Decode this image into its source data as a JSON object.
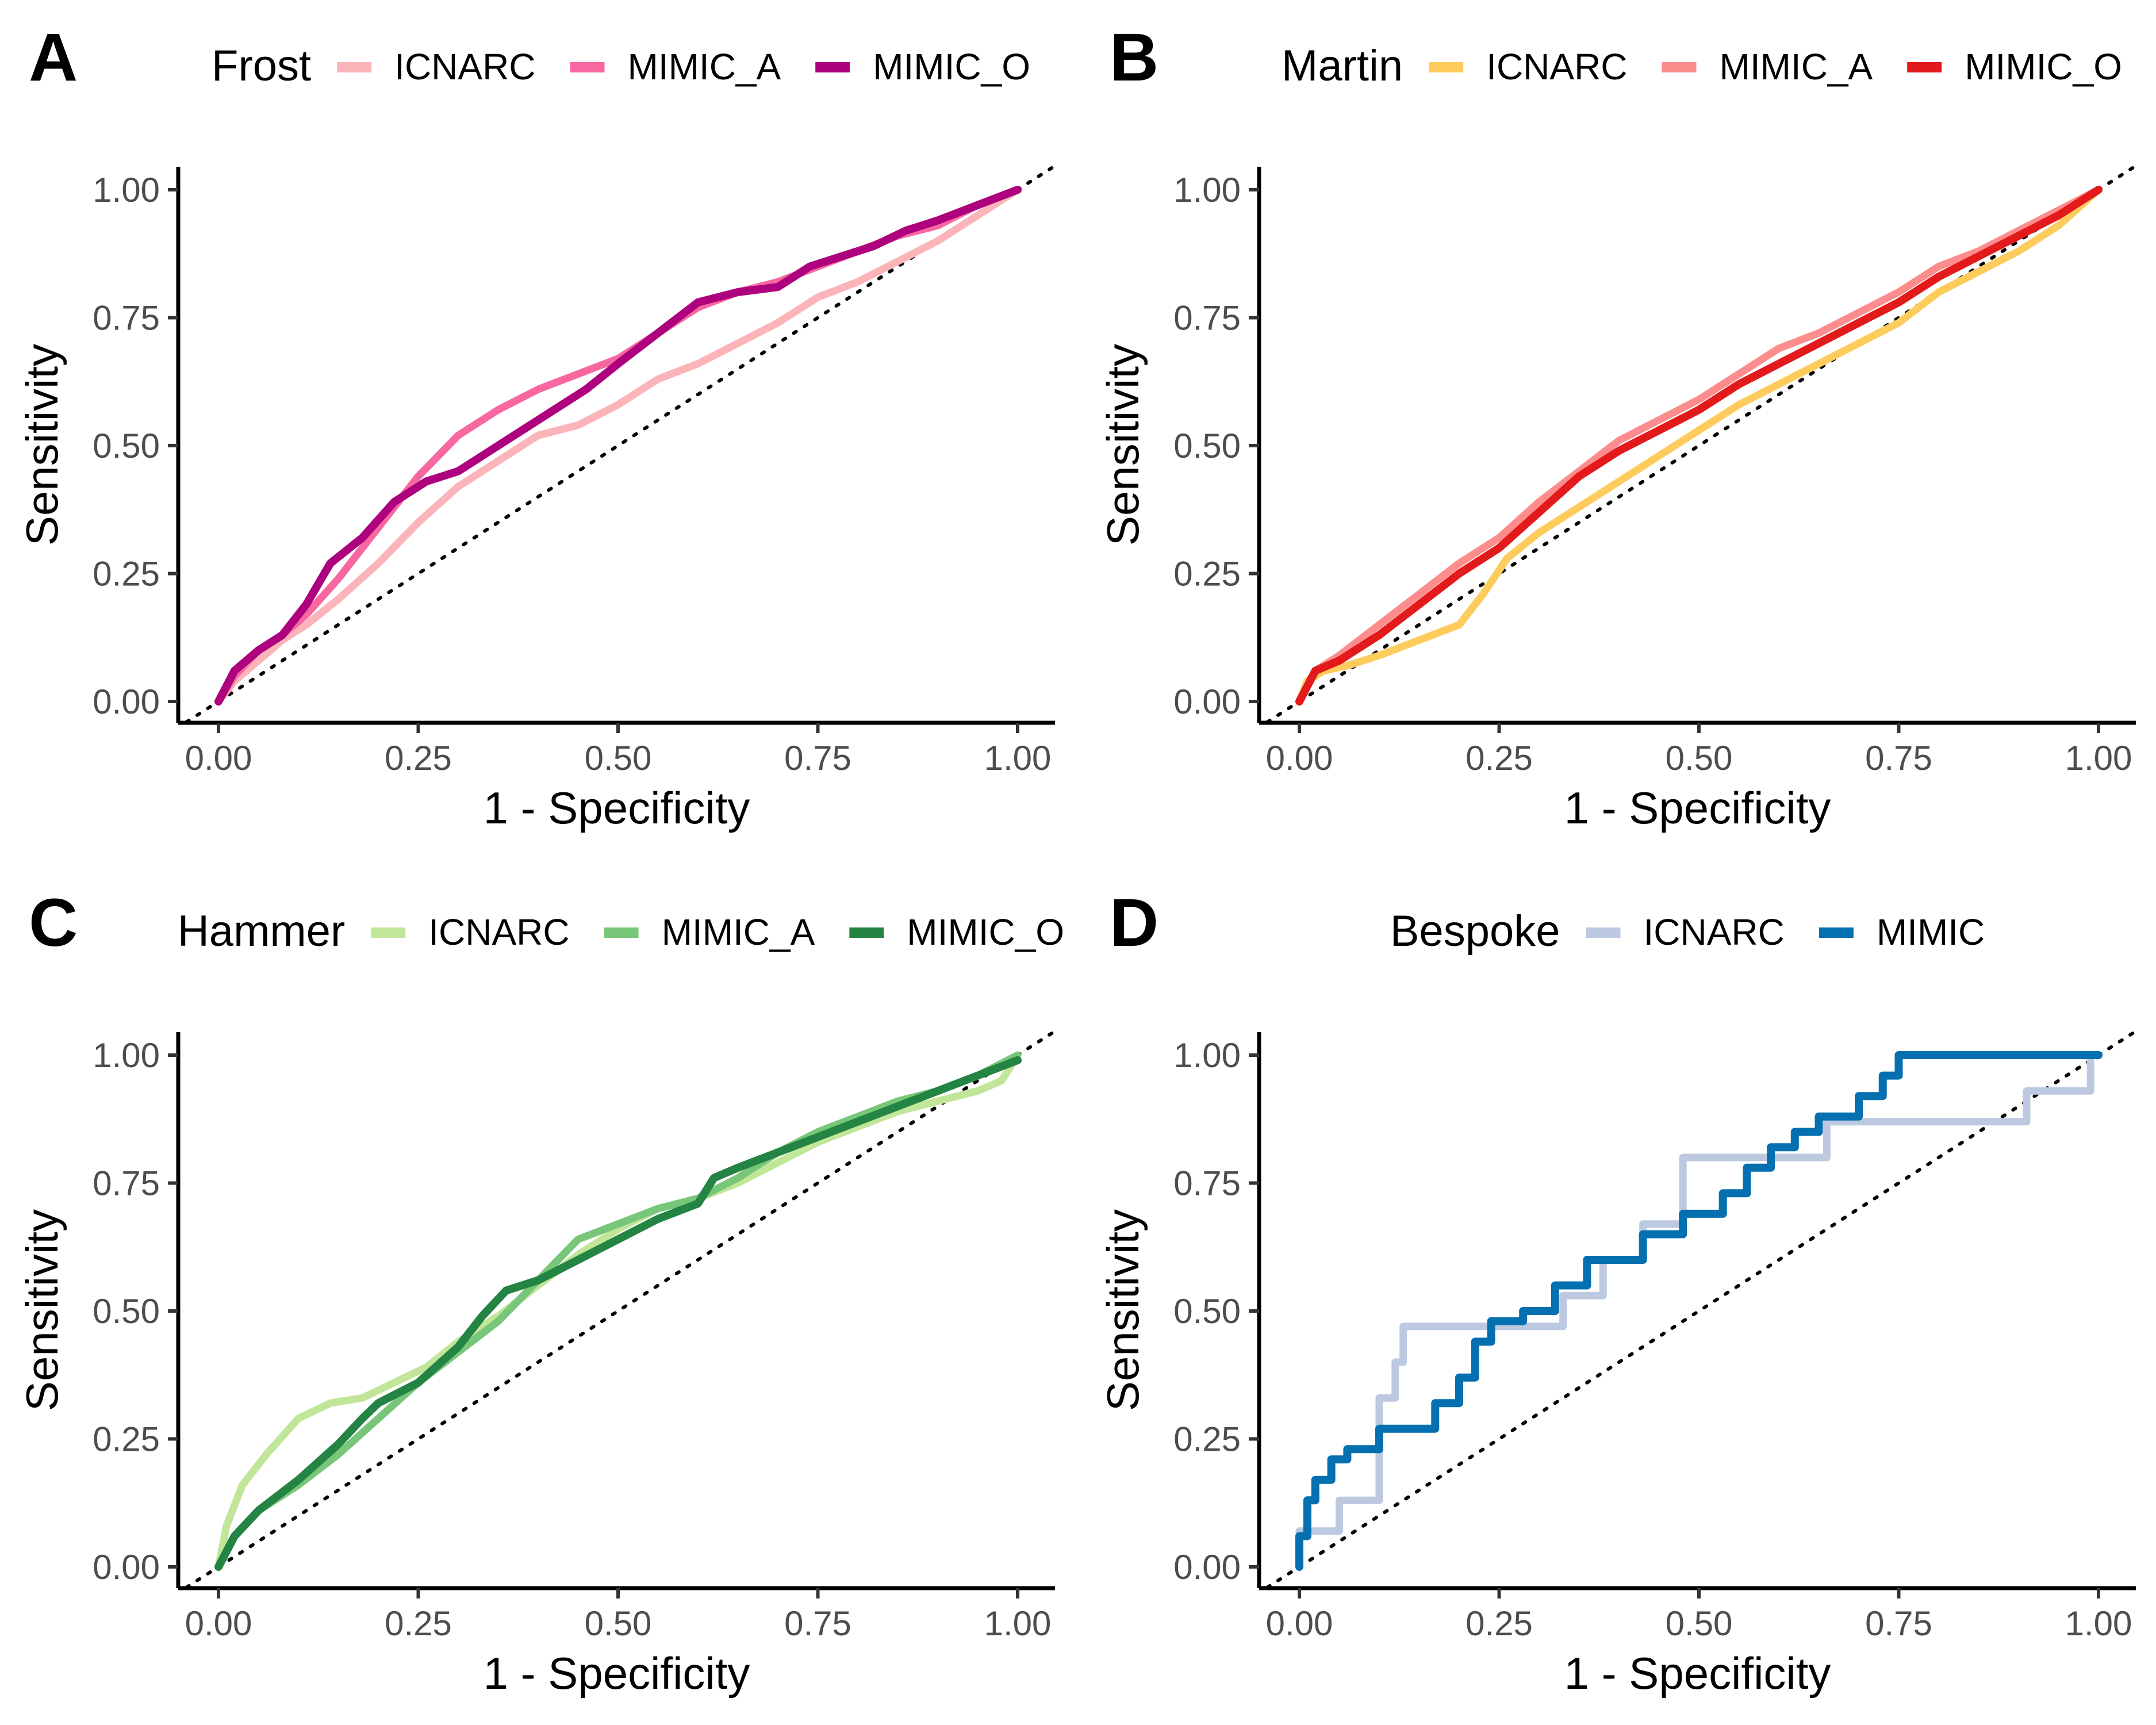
{
  "chart_data": [
    {
      "panel": "A",
      "type": "line",
      "legend_title": "Frost",
      "legend_position": "top",
      "xlabel": "1 - Specificity",
      "ylabel": "Sensitivity",
      "xlim": [
        0,
        1
      ],
      "ylim": [
        0,
        1
      ],
      "xticks": [
        "0.00",
        "0.25",
        "0.50",
        "0.75",
        "1.00"
      ],
      "yticks": [
        "0.00",
        "0.25",
        "0.50",
        "0.75",
        "1.00"
      ],
      "reference_line": "dotted diagonal",
      "series": [
        {
          "name": "ICNARC",
          "color": "#fbb4b9",
          "x": [
            0,
            0.02,
            0.05,
            0.08,
            0.11,
            0.15,
            0.2,
            0.25,
            0.3,
            0.35,
            0.4,
            0.45,
            0.5,
            0.55,
            0.6,
            0.65,
            0.7,
            0.75,
            0.8,
            0.85,
            0.9,
            0.95,
            1.0
          ],
          "y": [
            0,
            0.04,
            0.08,
            0.12,
            0.15,
            0.2,
            0.27,
            0.35,
            0.42,
            0.47,
            0.52,
            0.54,
            0.58,
            0.63,
            0.66,
            0.7,
            0.74,
            0.79,
            0.82,
            0.86,
            0.9,
            0.95,
            1.0
          ]
        },
        {
          "name": "MIMIC_A",
          "color": "#f768a1",
          "x": [
            0,
            0.02,
            0.05,
            0.08,
            0.11,
            0.15,
            0.2,
            0.25,
            0.3,
            0.35,
            0.4,
            0.45,
            0.5,
            0.55,
            0.6,
            0.65,
            0.7,
            0.75,
            0.8,
            0.85,
            0.9,
            0.95,
            1.0
          ],
          "y": [
            0,
            0.05,
            0.1,
            0.13,
            0.17,
            0.24,
            0.34,
            0.44,
            0.52,
            0.57,
            0.61,
            0.64,
            0.67,
            0.72,
            0.77,
            0.8,
            0.82,
            0.85,
            0.88,
            0.91,
            0.93,
            0.97,
            1.0
          ]
        },
        {
          "name": "MIMIC_O",
          "color": "#ae017e",
          "x": [
            0,
            0.02,
            0.05,
            0.08,
            0.11,
            0.14,
            0.18,
            0.22,
            0.26,
            0.3,
            0.34,
            0.38,
            0.42,
            0.46,
            0.5,
            0.55,
            0.6,
            0.65,
            0.7,
            0.74,
            0.78,
            0.82,
            0.86,
            0.9,
            0.95,
            1.0
          ],
          "y": [
            0,
            0.06,
            0.1,
            0.13,
            0.19,
            0.27,
            0.32,
            0.39,
            0.43,
            0.45,
            0.49,
            0.53,
            0.57,
            0.61,
            0.66,
            0.72,
            0.78,
            0.8,
            0.81,
            0.85,
            0.87,
            0.89,
            0.92,
            0.94,
            0.97,
            1.0
          ]
        }
      ]
    },
    {
      "panel": "B",
      "type": "line",
      "legend_title": "Martin",
      "legend_position": "top",
      "xlabel": "1 - Specificity",
      "ylabel": "Sensitivity",
      "xlim": [
        0,
        1
      ],
      "ylim": [
        0,
        1
      ],
      "xticks": [
        "0.00",
        "0.25",
        "0.50",
        "0.75",
        "1.00"
      ],
      "yticks": [
        "0.00",
        "0.25",
        "0.50",
        "0.75",
        "1.00"
      ],
      "reference_line": "dotted diagonal",
      "series": [
        {
          "name": "ICNARC",
          "color": "#fecc5c",
          "x": [
            0,
            0.01,
            0.03,
            0.06,
            0.1,
            0.15,
            0.2,
            0.23,
            0.26,
            0.3,
            0.35,
            0.4,
            0.45,
            0.5,
            0.55,
            0.6,
            0.65,
            0.7,
            0.75,
            0.8,
            0.85,
            0.9,
            0.95,
            1.0
          ],
          "y": [
            0,
            0.04,
            0.06,
            0.07,
            0.09,
            0.12,
            0.15,
            0.21,
            0.28,
            0.33,
            0.38,
            0.43,
            0.48,
            0.53,
            0.58,
            0.62,
            0.66,
            0.7,
            0.74,
            0.8,
            0.84,
            0.88,
            0.93,
            1.0
          ]
        },
        {
          "name": "MIMIC_A",
          "color": "#fd8d8d",
          "x": [
            0,
            0.02,
            0.05,
            0.1,
            0.15,
            0.2,
            0.25,
            0.3,
            0.35,
            0.4,
            0.45,
            0.5,
            0.55,
            0.6,
            0.65,
            0.7,
            0.75,
            0.8,
            0.85,
            0.9,
            0.95,
            1.0
          ],
          "y": [
            0,
            0.06,
            0.09,
            0.15,
            0.21,
            0.27,
            0.32,
            0.39,
            0.45,
            0.51,
            0.55,
            0.59,
            0.64,
            0.69,
            0.72,
            0.76,
            0.8,
            0.85,
            0.88,
            0.92,
            0.96,
            1.0
          ]
        },
        {
          "name": "MIMIC_O",
          "color": "#e31a1c",
          "x": [
            0,
            0.02,
            0.05,
            0.1,
            0.15,
            0.2,
            0.25,
            0.3,
            0.35,
            0.4,
            0.45,
            0.5,
            0.55,
            0.6,
            0.65,
            0.7,
            0.75,
            0.8,
            0.85,
            0.9,
            0.95,
            1.0
          ],
          "y": [
            0,
            0.06,
            0.08,
            0.13,
            0.19,
            0.25,
            0.3,
            0.37,
            0.44,
            0.49,
            0.53,
            0.57,
            0.62,
            0.66,
            0.7,
            0.74,
            0.78,
            0.83,
            0.87,
            0.91,
            0.95,
            1.0
          ]
        }
      ]
    },
    {
      "panel": "C",
      "type": "line",
      "legend_title": "Hammer",
      "legend_position": "top",
      "xlabel": "1 - Specificity",
      "ylabel": "Sensitivity",
      "xlim": [
        0,
        1
      ],
      "ylim": [
        0,
        1
      ],
      "xticks": [
        "0.00",
        "0.25",
        "0.50",
        "0.75",
        "1.00"
      ],
      "yticks": [
        "0.00",
        "0.25",
        "0.50",
        "0.75",
        "1.00"
      ],
      "reference_line": "dotted diagonal",
      "series": [
        {
          "name": "ICNARC",
          "color": "#c2e699",
          "x": [
            0,
            0.01,
            0.03,
            0.06,
            0.1,
            0.14,
            0.18,
            0.22,
            0.26,
            0.3,
            0.35,
            0.4,
            0.45,
            0.5,
            0.55,
            0.6,
            0.65,
            0.7,
            0.75,
            0.8,
            0.85,
            0.9,
            0.95,
            0.98,
            1.0
          ],
          "y": [
            0,
            0.08,
            0.16,
            0.22,
            0.29,
            0.32,
            0.33,
            0.36,
            0.39,
            0.44,
            0.49,
            0.55,
            0.61,
            0.66,
            0.7,
            0.72,
            0.75,
            0.79,
            0.83,
            0.86,
            0.89,
            0.91,
            0.93,
            0.95,
            1.0
          ]
        },
        {
          "name": "MIMIC_A",
          "color": "#78c679",
          "x": [
            0,
            0.02,
            0.05,
            0.1,
            0.15,
            0.2,
            0.25,
            0.3,
            0.35,
            0.4,
            0.45,
            0.5,
            0.55,
            0.6,
            0.65,
            0.7,
            0.75,
            0.8,
            0.85,
            0.9,
            0.95,
            1.0
          ],
          "y": [
            0,
            0.06,
            0.11,
            0.16,
            0.22,
            0.29,
            0.36,
            0.42,
            0.48,
            0.56,
            0.64,
            0.67,
            0.7,
            0.72,
            0.76,
            0.81,
            0.85,
            0.88,
            0.91,
            0.93,
            0.96,
            1.0
          ]
        },
        {
          "name": "MIMIC_O",
          "color": "#238443",
          "x": [
            0,
            0.02,
            0.05,
            0.1,
            0.15,
            0.18,
            0.2,
            0.25,
            0.3,
            0.33,
            0.36,
            0.4,
            0.45,
            0.5,
            0.55,
            0.6,
            0.62,
            0.65,
            0.7,
            0.75,
            0.8,
            0.85,
            0.9,
            0.95,
            1.0
          ],
          "y": [
            0,
            0.06,
            0.11,
            0.17,
            0.24,
            0.29,
            0.32,
            0.36,
            0.43,
            0.49,
            0.54,
            0.56,
            0.6,
            0.64,
            0.68,
            0.71,
            0.76,
            0.78,
            0.81,
            0.84,
            0.87,
            0.9,
            0.93,
            0.96,
            0.99
          ]
        }
      ]
    },
    {
      "panel": "D",
      "type": "line",
      "legend_title": "Bespoke",
      "legend_position": "top",
      "xlabel": "1 - Specificity",
      "ylabel": "Sensitivity",
      "xlim": [
        0,
        1
      ],
      "ylim": [
        0,
        1
      ],
      "xticks": [
        "0.00",
        "0.25",
        "0.50",
        "0.75",
        "1.00"
      ],
      "yticks": [
        "0.00",
        "0.25",
        "0.50",
        "0.75",
        "1.00"
      ],
      "reference_line": "dotted diagonal",
      "series": [
        {
          "name": "ICNARC",
          "color": "#bdc9e1",
          "x": [
            0,
            0,
            0.01,
            0.01,
            0.05,
            0.05,
            0.1,
            0.1,
            0.12,
            0.12,
            0.13,
            0.13,
            0.33,
            0.33,
            0.38,
            0.38,
            0.43,
            0.43,
            0.48,
            0.48,
            0.66,
            0.66,
            0.91,
            0.91,
            0.99,
            0.99,
            1.0
          ],
          "y": [
            0,
            0.07,
            0.07,
            0.07,
            0.07,
            0.13,
            0.13,
            0.33,
            0.33,
            0.4,
            0.4,
            0.47,
            0.47,
            0.53,
            0.53,
            0.6,
            0.6,
            0.67,
            0.67,
            0.8,
            0.8,
            0.87,
            0.87,
            0.93,
            0.93,
            1.0,
            1.0
          ]
        },
        {
          "name": "MIMIC",
          "color": "#0570b0",
          "x": [
            0,
            0,
            0.01,
            0.01,
            0.02,
            0.02,
            0.04,
            0.04,
            0.06,
            0.06,
            0.1,
            0.1,
            0.17,
            0.17,
            0.2,
            0.2,
            0.22,
            0.22,
            0.24,
            0.24,
            0.28,
            0.28,
            0.32,
            0.32,
            0.36,
            0.36,
            0.43,
            0.43,
            0.48,
            0.48,
            0.53,
            0.53,
            0.56,
            0.56,
            0.59,
            0.59,
            0.62,
            0.62,
            0.65,
            0.65,
            0.7,
            0.7,
            0.73,
            0.73,
            0.75,
            0.75,
            1.0
          ],
          "y": [
            0,
            0.06,
            0.06,
            0.13,
            0.13,
            0.17,
            0.17,
            0.21,
            0.21,
            0.23,
            0.23,
            0.27,
            0.27,
            0.32,
            0.32,
            0.37,
            0.37,
            0.44,
            0.44,
            0.48,
            0.48,
            0.5,
            0.5,
            0.55,
            0.55,
            0.6,
            0.6,
            0.65,
            0.65,
            0.69,
            0.69,
            0.73,
            0.73,
            0.78,
            0.78,
            0.82,
            0.82,
            0.85,
            0.85,
            0.88,
            0.88,
            0.92,
            0.92,
            0.96,
            0.96,
            1.0,
            1.0
          ]
        }
      ]
    }
  ]
}
